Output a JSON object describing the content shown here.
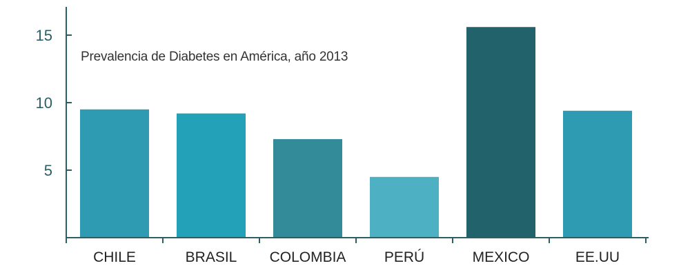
{
  "chart_data": {
    "type": "bar",
    "title": "Prevalencia de Diabetes en América, año 2013",
    "categories": [
      "CHILE",
      "BRASIL",
      "COLOMBIA",
      "PERÚ",
      "MEXICO",
      "EE.UU"
    ],
    "values": [
      9.5,
      9.2,
      7.3,
      4.5,
      15.6,
      9.4
    ],
    "ylim": [
      0,
      17
    ],
    "yticks": [
      5,
      10,
      15
    ],
    "xlabel": "",
    "ylabel": "",
    "grid": false,
    "bar_colors": [
      "#2e9bb3",
      "#22a1b9",
      "#338a98",
      "#4eb0c3",
      "#21626b",
      "#2e9bb3"
    ],
    "axis_color": "#2b5f66",
    "tick_label_color": "#2b5f66",
    "category_label_color": "#222222"
  }
}
